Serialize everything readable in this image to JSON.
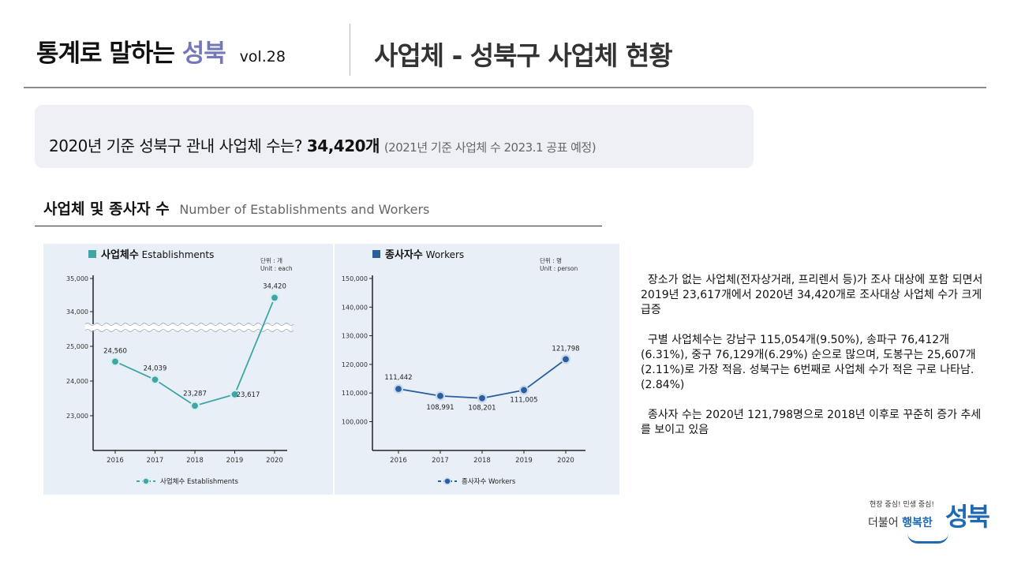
{
  "header": {
    "title_main": "통계로 말하는",
    "title_accent": "성북",
    "volume": "vol.28",
    "topic": "사업체 - 성북구 사업체 현황"
  },
  "highlight": {
    "question": "2020년 기준 성북구 관내 사업체 수는?",
    "answer": "34,420개",
    "note": "(2021년 기준 사업체 수 2023.1 공표 예정)"
  },
  "section": {
    "title": "사업체 및 종사자 수",
    "title_en": "Number of Establishments and Workers"
  },
  "chart_data": [
    {
      "type": "line",
      "title": "사업체수 Establishments",
      "unit": "단위 : 개\nUnit : each",
      "x": [
        "2016",
        "2017",
        "2018",
        "2019",
        "2020"
      ],
      "series": [
        {
          "name": "사업체수 Establishments",
          "values": [
            24560,
            24039,
            23287,
            23617,
            34420
          ]
        }
      ],
      "data_labels": [
        "24,560",
        "24,039",
        "23,287",
        "23,617",
        "34,420"
      ],
      "y_ticks": [
        "35,000",
        "34,000",
        "25,000",
        "24,000",
        "23,000"
      ],
      "ylim": [
        22500,
        35000
      ],
      "axis_break": [
        25500,
        33700
      ],
      "color": "#3fa5a5",
      "grid": false,
      "legend": "bottom"
    },
    {
      "type": "line",
      "title": "종사자수 Workers",
      "unit": "단위 : 명\nUnit : person",
      "x": [
        "2016",
        "2017",
        "2018",
        "2019",
        "2020"
      ],
      "series": [
        {
          "name": "종사자수 Workers",
          "values": [
            111442,
            108991,
            108201,
            111005,
            121798
          ]
        }
      ],
      "data_labels": [
        "111,442",
        "108,991",
        "108,201",
        "111,005",
        "121,798"
      ],
      "y_ticks": [
        "150,000",
        "140,000",
        "130,000",
        "120,000",
        "110,000",
        "100,000"
      ],
      "ylim": [
        90000,
        150000
      ],
      "color": "#2a5e9c",
      "grid": false,
      "legend": "bottom"
    }
  ],
  "description": [
    "장소가 없는 사업체(전자상거래, 프리렌서 등)가 조사 대상에 포함 되면서 2019년 23,617개에서 2020년 34,420개로 조사대상 사업체 수가 크게 급증",
    "구별 사업체수는 강남구 115,054개(9.50%), 송파구 76,412개(6.31%), 중구 76,129개(6.29%) 순으로 많으며, 도봉구는 25,607개(2.11%)로 가장 적음. 성북구는 6번째로 사업체 수가 적은 구로 나타남.(2.84%)",
    "종사자 수는 2020년 121,798명으로 2018년 이후로 꾸준히 증가 추세를 보이고 있음"
  ],
  "logo": {
    "slogan": "현장 중심! 민생 중심!",
    "together_prefix": "더불어",
    "together_highlight": "행복한",
    "brand": "성북"
  }
}
